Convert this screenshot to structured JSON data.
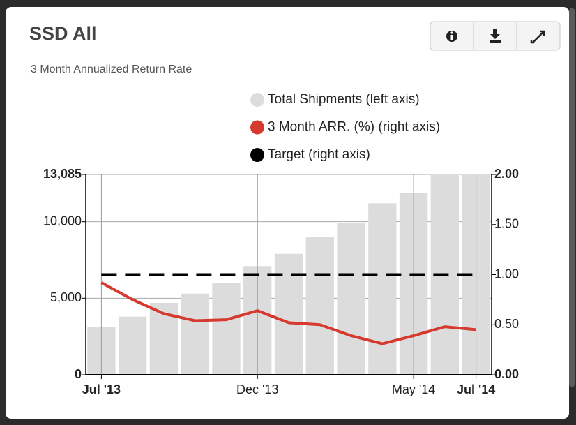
{
  "chart_data": {
    "type": "bar-line",
    "title": "SSD All",
    "subtitle": "3 Month Annualized Return Rate",
    "categories": [
      "Jul '13",
      null,
      null,
      null,
      null,
      "Dec '13",
      null,
      null,
      null,
      null,
      "May '14",
      null,
      "Jul '14"
    ],
    "series": [
      {
        "name": "Total Shipments (left axis)",
        "color": "#dcdcdc",
        "type": "bar",
        "axis": "y",
        "values": [
          3100,
          3800,
          4700,
          5300,
          6000,
          7100,
          7900,
          9000,
          9900,
          11200,
          11900,
          13085,
          13085
        ]
      },
      {
        "name": "3 Month ARR. (%) (right axis)",
        "color": "#d63a2f",
        "type": "line",
        "axis": "y2",
        "values": [
          0.92,
          0.75,
          0.61,
          0.54,
          0.55,
          0.64,
          0.52,
          0.5,
          0.39,
          0.31,
          0.39,
          0.48,
          0.45
        ]
      },
      {
        "name": "Target (right axis)",
        "color": "#000000",
        "type": "dashed-line",
        "axis": "y2",
        "values": [
          1,
          1,
          1,
          1,
          1,
          1,
          1,
          1,
          1,
          1,
          1,
          1,
          1
        ]
      }
    ],
    "ylim": [
      0,
      13085
    ],
    "yticks": [
      0,
      {
        "value": 5000,
        "label": "5,000"
      },
      {
        "value": 10000,
        "label": "10,000"
      },
      {
        "value": 13085,
        "label": "13,085"
      }
    ],
    "y2lim": [
      0,
      2
    ],
    "y2ticks": [
      {
        "value": 0,
        "label": "0.00"
      },
      {
        "value": 0.5,
        "label": "0.50"
      },
      {
        "value": 1,
        "label": "1.00"
      },
      {
        "value": 1.5,
        "label": "1.50"
      },
      {
        "value": 2,
        "label": "2.00"
      }
    ],
    "grid": true
  }
}
